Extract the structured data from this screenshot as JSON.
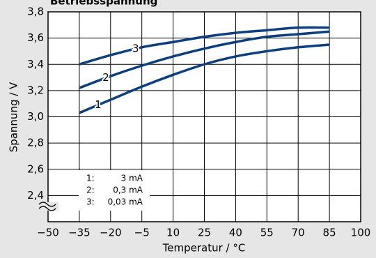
{
  "chart_data": {
    "type": "line",
    "title": "Betriebsspannung",
    "xlabel": "Temperatur / °C",
    "ylabel": "Spannung / V",
    "x": [
      -35,
      -20,
      -5,
      10,
      25,
      40,
      55,
      70,
      85
    ],
    "series": [
      {
        "name": "1",
        "color": "#0c3f7d",
        "values": [
          3.03,
          3.13,
          3.23,
          3.32,
          3.4,
          3.46,
          3.5,
          3.53,
          3.55
        ]
      },
      {
        "name": "2",
        "color": "#0c3f7d",
        "values": [
          3.22,
          3.31,
          3.39,
          3.46,
          3.52,
          3.57,
          3.61,
          3.63,
          3.65
        ]
      },
      {
        "name": "3",
        "color": "#0c3f7d",
        "values": [
          3.4,
          3.47,
          3.53,
          3.57,
          3.61,
          3.64,
          3.66,
          3.68,
          3.68
        ]
      }
    ],
    "legend": [
      {
        "key": "1:",
        "text": "3 mA"
      },
      {
        "key": "2:",
        "text": "0,3 mA"
      },
      {
        "key": "3:",
        "text": "0,03 mA"
      }
    ],
    "xlim": [
      -50,
      100
    ],
    "xticks": [
      {
        "value": -50,
        "label": "−50"
      },
      {
        "value": -35,
        "label": "−35"
      },
      {
        "value": -20,
        "label": "−20"
      },
      {
        "value": -5,
        "label": "−5"
      },
      10,
      25,
      40,
      55,
      70,
      85,
      100
    ],
    "ylim": [
      2.2,
      3.8
    ],
    "yticks": [
      {
        "value": 2.4,
        "label": "2,4"
      },
      {
        "value": 2.6,
        "label": "2,6"
      },
      {
        "value": 2.8,
        "label": "2,8"
      },
      {
        "value": 3.0,
        "label": "3,0"
      },
      {
        "value": 3.2,
        "label": "3,2"
      },
      {
        "value": 3.4,
        "label": "3,4"
      },
      {
        "value": 3.6,
        "label": "3,6"
      },
      {
        "value": 3.8,
        "label": "3,8"
      }
    ],
    "grid": true
  }
}
